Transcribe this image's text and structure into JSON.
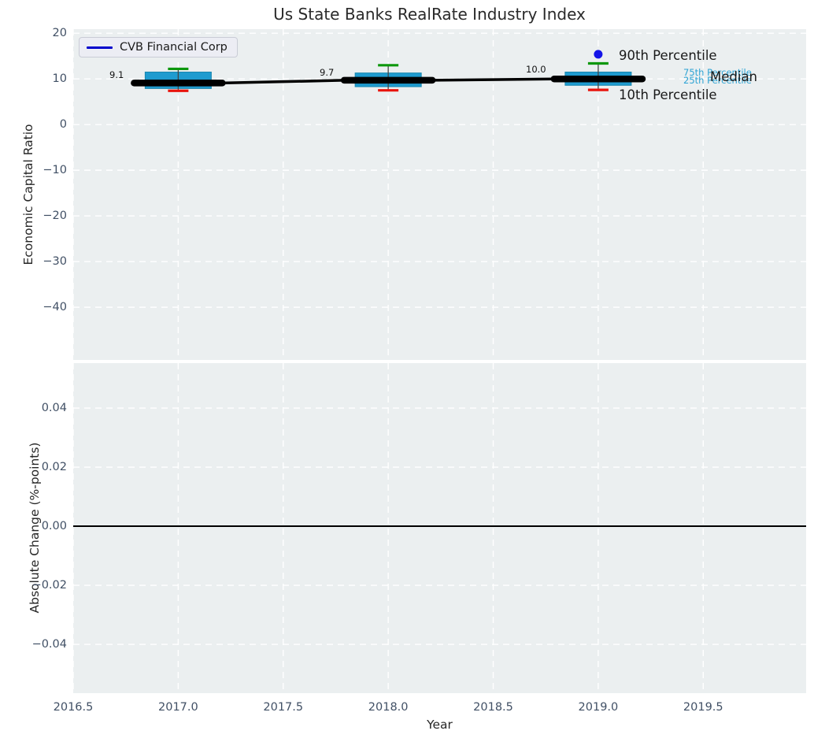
{
  "figure": {
    "title": "Us State Banks RealRate Industry Index",
    "background": "#ffffff",
    "plot_background": "#ebeff0",
    "grid_color": "#ffffff",
    "tick_color": "#415065",
    "legend": {
      "label": "CVB Financial Corp",
      "line_color": "#0000cc"
    }
  },
  "chart_data": [
    {
      "type": "box",
      "ylabel": "Economic Capital Ratio",
      "xlabel": "Year",
      "legend_position": "upper-left",
      "grid": "white dashed, on",
      "x_ticks": [
        2016.5,
        2017.0,
        2017.5,
        2018.0,
        2018.5,
        2019.0,
        2019.5
      ],
      "x_tick_labels": [
        "2016.5",
        "2017.0",
        "2017.5",
        "2018.0",
        "2018.5",
        "2019.0",
        "2019.5"
      ],
      "y_ticks": [
        20,
        10,
        0,
        -10,
        -20,
        -30,
        -40
      ],
      "y_tick_labels": [
        "20",
        "10",
        "0",
        "−10",
        "−20",
        "−30",
        "−40"
      ],
      "xlim": [
        2016.5,
        2019.99
      ],
      "ylim": [
        -51.55,
        20.9
      ],
      "series": [
        {
          "name": "CVB Financial Corp",
          "color": "#000000",
          "x": [
            2017,
            2018,
            2019
          ],
          "y": [
            9.1,
            9.7,
            10.0
          ],
          "point_labels": [
            "9.1",
            "9.7",
            "10.0"
          ]
        }
      ],
      "boxes": [
        {
          "x": 2017,
          "p90": 12.2,
          "q3": 11.5,
          "median": 9.1,
          "q1": 7.9,
          "p10": 7.4
        },
        {
          "x": 2018,
          "p90": 13.0,
          "q3": 11.3,
          "median": 9.7,
          "q1": 8.3,
          "p10": 7.5
        },
        {
          "x": 2019,
          "p90": 13.4,
          "q3": 11.5,
          "median": 10.0,
          "q1": 8.6,
          "p10": 7.6,
          "outlier_90th": 15.4
        }
      ],
      "box_color": "#1f9bcf",
      "box_edge_color": "#1886ad",
      "whisker_color": "#444444",
      "cap_colors": {
        "p90": "#0c970c",
        "p10": "#e8130c"
      },
      "outlier_color": "#1414e8",
      "percentile_labels": {
        "p90": "90th Percentile",
        "p75": "75th Percentile",
        "p25": "25th Percentile",
        "median": "Median",
        "p10": "10th Percentile"
      }
    },
    {
      "type": "line",
      "ylabel": "Absolute Change (%-points)",
      "xlabel": "Year",
      "grid": "white dashed, on",
      "x_ticks": [
        2016.5,
        2017.0,
        2017.5,
        2018.0,
        2018.5,
        2019.0,
        2019.5
      ],
      "x_tick_labels": [
        "2016.5",
        "2017.0",
        "2017.5",
        "2018.0",
        "2018.5",
        "2019.0",
        "2019.5"
      ],
      "y_ticks": [
        0.04,
        0.02,
        0.0,
        -0.02,
        -0.04
      ],
      "y_tick_labels": [
        "0.04",
        "0.02",
        "0.00",
        "−0.02",
        "−0.04"
      ],
      "xlim": [
        2016.5,
        2019.99
      ],
      "ylim": [
        -0.0565,
        0.0552
      ],
      "zero_line": {
        "value": 0.0,
        "color": "#000000"
      }
    }
  ]
}
